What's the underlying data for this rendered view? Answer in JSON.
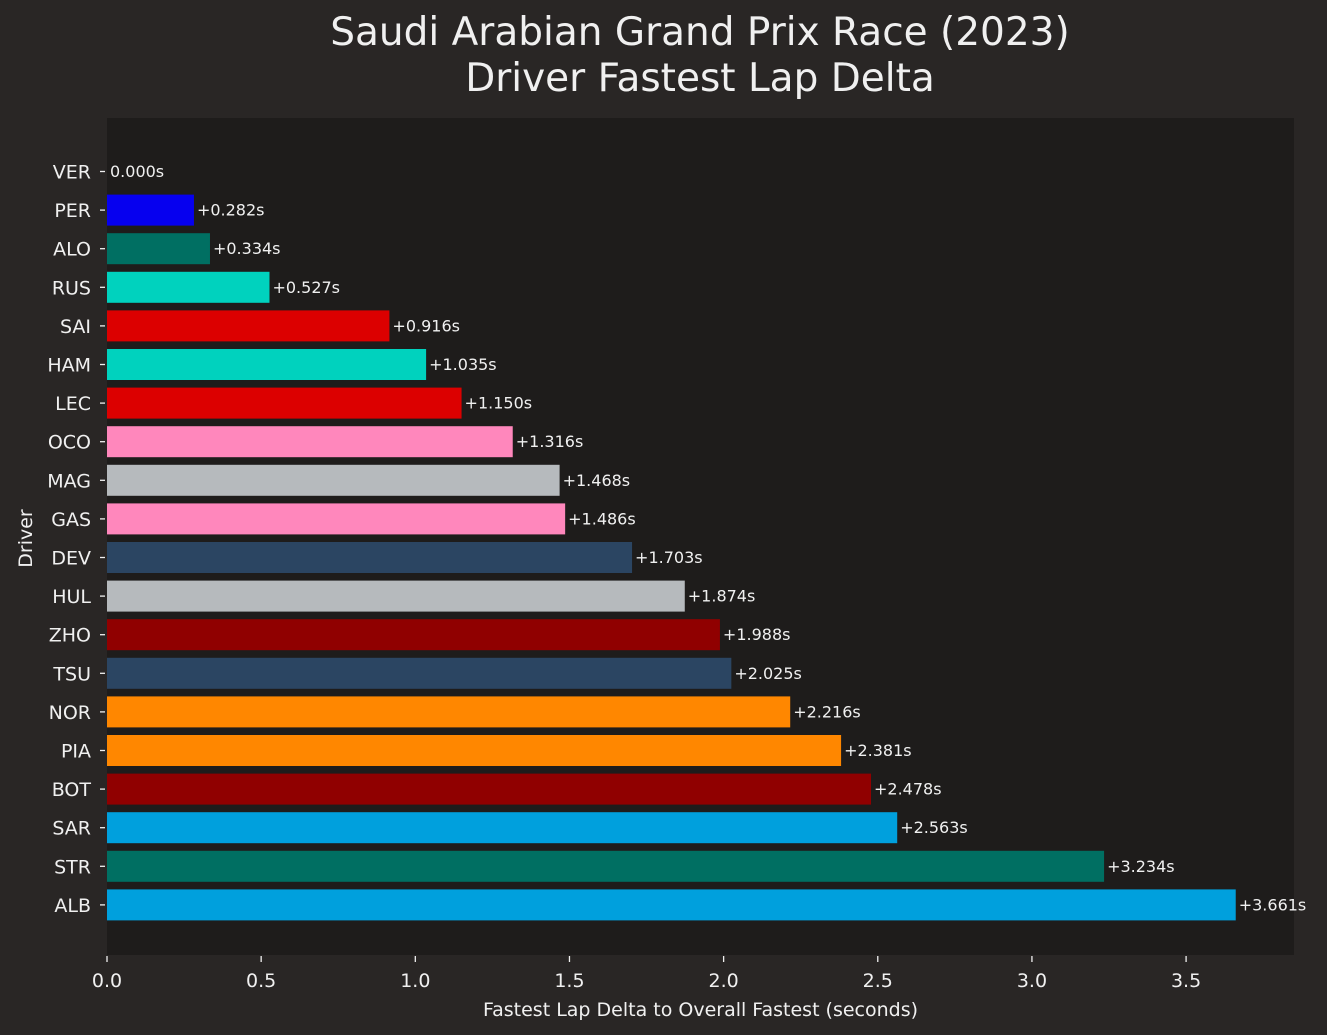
{
  "chart_data": {
    "type": "bar",
    "orientation": "horizontal",
    "title": "Saudi Arabian Grand Prix Race (2023)\nDriver Fastest Lap Delta",
    "xlabel": "Fastest Lap Delta to Overall Fastest (seconds)",
    "ylabel": "Driver",
    "xlim": [
      0,
      3.85
    ],
    "xticks": [
      "0.0",
      "0.5",
      "1.0",
      "1.5",
      "2.0",
      "2.5",
      "3.0",
      "3.5"
    ],
    "xtick_values": [
      0,
      0.5,
      1.0,
      1.5,
      2.0,
      2.5,
      3.0,
      3.5
    ],
    "grid": false,
    "categories": [
      "VER",
      "PER",
      "ALO",
      "RUS",
      "SAI",
      "HAM",
      "LEC",
      "OCO",
      "MAG",
      "GAS",
      "DEV",
      "HUL",
      "ZHO",
      "TSU",
      "NOR",
      "PIA",
      "BOT",
      "SAR",
      "STR",
      "ALB"
    ],
    "values": [
      0.0,
      0.282,
      0.334,
      0.527,
      0.916,
      1.035,
      1.15,
      1.316,
      1.468,
      1.486,
      1.703,
      1.874,
      1.988,
      2.025,
      2.216,
      2.381,
      2.478,
      2.563,
      3.234,
      3.661
    ],
    "bar_labels": [
      "0.000s",
      "+0.282s",
      "+0.334s",
      "+0.527s",
      "+0.916s",
      "+1.035s",
      "+1.150s",
      "+1.316s",
      "+1.468s",
      "+1.486s",
      "+1.703s",
      "+1.874s",
      "+1.988s",
      "+2.025s",
      "+2.216s",
      "+2.381s",
      "+2.478s",
      "+2.563s",
      "+3.234s",
      "+3.661s"
    ],
    "colors": [
      "#0600ef",
      "#0600ef",
      "#006f62",
      "#00d2be",
      "#dc0000",
      "#00d2be",
      "#dc0000",
      "#ff87bc",
      "#b6babd",
      "#ff87bc",
      "#2b4562",
      "#b6babd",
      "#900000",
      "#2b4562",
      "#ff8700",
      "#ff8700",
      "#900000",
      "#00a0dd",
      "#006f62",
      "#00a0dd"
    ]
  },
  "theme": {
    "background": "#292625",
    "plot_background": "#1e1c1b",
    "text_color": "#f0f0f0"
  }
}
